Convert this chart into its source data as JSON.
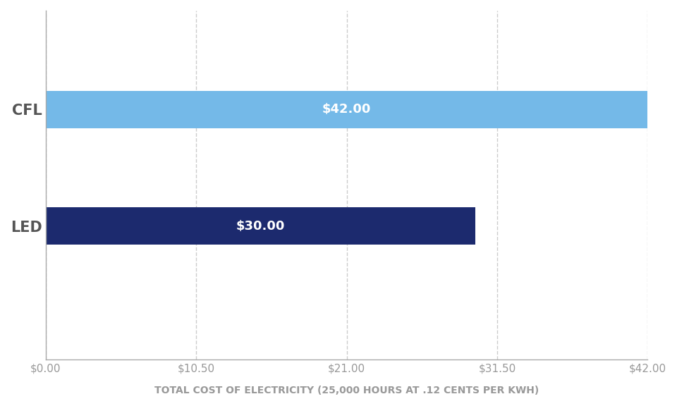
{
  "categories": [
    "CFL",
    "LED"
  ],
  "values": [
    42.0,
    30.0
  ],
  "bar_colors": [
    "#74b9e8",
    "#1c2a6e"
  ],
  "bar_labels": [
    "$42.00",
    "$30.00"
  ],
  "label_color": "#ffffff",
  "label_fontsize": 13,
  "label_fontweight": "bold",
  "xlabel": "TOTAL COST OF ELECTRICITY (25,000 HOURS AT .12 CENTS PER KWH)",
  "xlabel_fontsize": 10,
  "xlabel_color": "#999999",
  "tick_color": "#999999",
  "tick_fontsize": 11,
  "xlim": [
    0,
    42.0
  ],
  "xticks": [
    0,
    10.5,
    21.0,
    31.5,
    42.0
  ],
  "xtick_labels": [
    "$0.00",
    "$10.50",
    "$21.00",
    "$31.50",
    "$42.00"
  ],
  "ytick_color": "#555555",
  "ytick_fontsize": 15,
  "ytick_fontweight": "bold",
  "background_color": "#ffffff",
  "bar_height": 0.32,
  "grid_color": "#cccccc",
  "spine_color": "#aaaaaa",
  "figsize": [
    9.6,
    5.76
  ],
  "dpi": 100,
  "ylim": [
    -0.5,
    2.5
  ]
}
